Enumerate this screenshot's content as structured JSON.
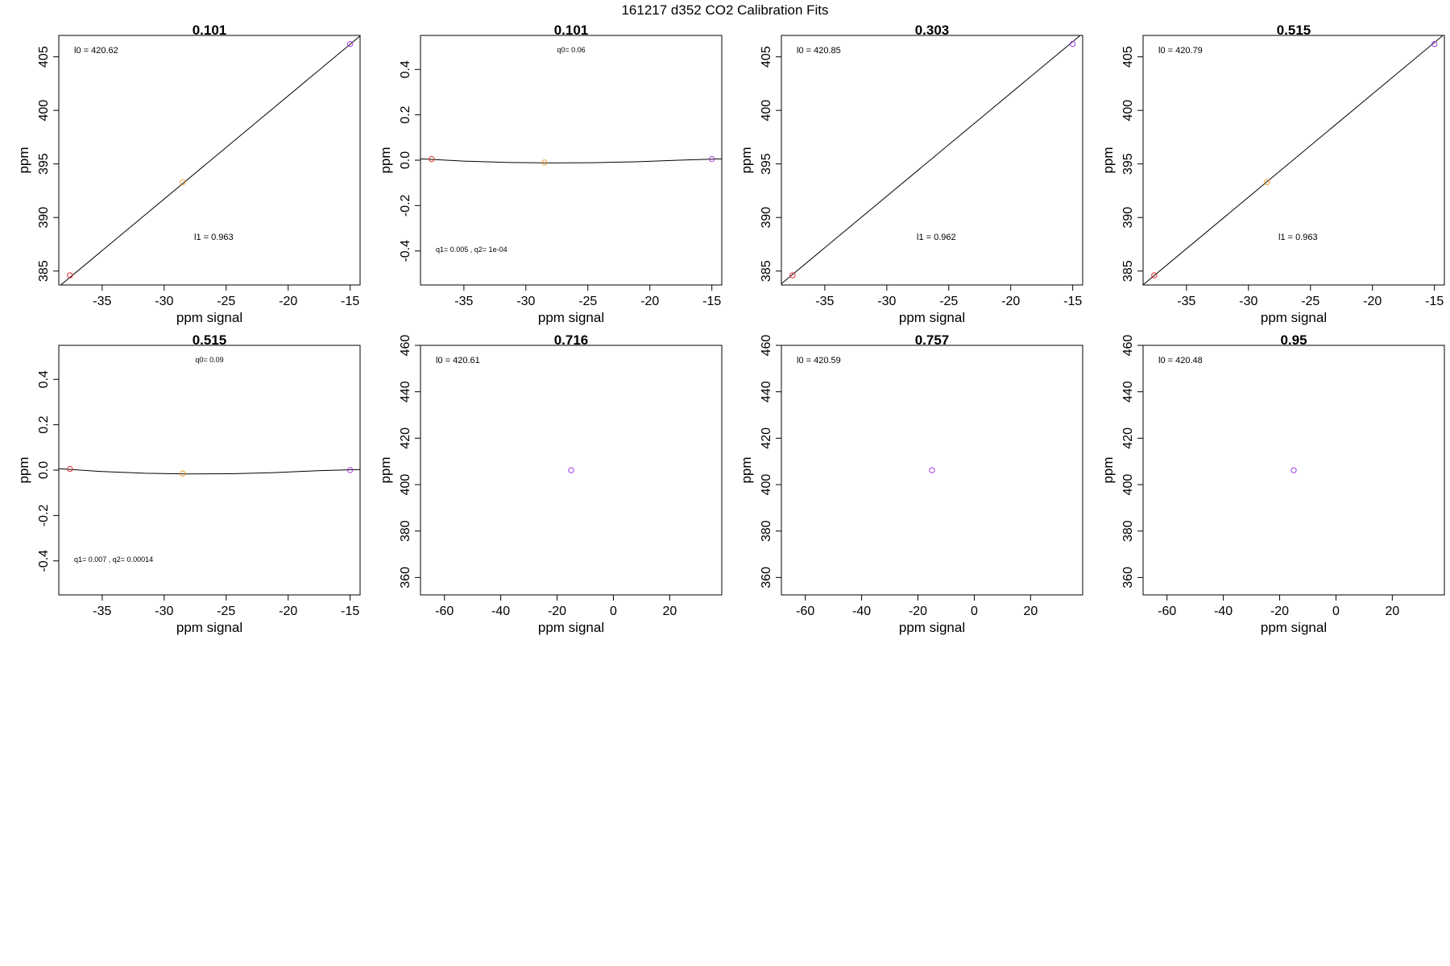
{
  "figure_title": "161217   d352   CO2 Calibration Fits",
  "colors": {
    "frame": "#000000",
    "fit_line": "#000000",
    "point_low": "#e03030",
    "point_mid": "#f0a030",
    "point_high": "#a040e0"
  },
  "chart_data": [
    {
      "type": "scatter",
      "title": "0.101",
      "xlabel": "ppm signal",
      "ylabel": "ppm",
      "xlim": [
        -38.5,
        -14.2
      ],
      "ylim": [
        383.7,
        407.0
      ],
      "xticks": [
        -35,
        -30,
        -25,
        -20,
        -15
      ],
      "xtick_labels": [
        "-35",
        "-30",
        "-25",
        "-20",
        "-15"
      ],
      "yticks": [
        385,
        390,
        395,
        400,
        405
      ],
      "ytick_labels": [
        "385",
        "390",
        "395",
        "400",
        "405"
      ],
      "points": [
        {
          "x": -37.6,
          "y": 384.6,
          "color": "#e03030"
        },
        {
          "x": -28.5,
          "y": 393.3,
          "color": "#f0a030"
        },
        {
          "x": -15.0,
          "y": 406.2,
          "color": "#a040e0"
        }
      ],
      "fit": {
        "kind": "linear",
        "intercept": 420.62,
        "slope": 0.963
      },
      "annotations": [
        {
          "text": "l0 =  420.62",
          "pos": "top-left"
        },
        {
          "text": "l1 =  0.963",
          "pos": "mid-right"
        }
      ]
    },
    {
      "type": "scatter",
      "title": "0.101",
      "xlabel": "ppm signal",
      "ylabel": "ppm",
      "xlim": [
        -38.5,
        -14.2
      ],
      "ylim": [
        -0.55,
        0.55
      ],
      "xticks": [
        -35,
        -30,
        -25,
        -20,
        -15
      ],
      "xtick_labels": [
        "-35",
        "-30",
        "-25",
        "-20",
        "-15"
      ],
      "yticks": [
        -0.4,
        -0.2,
        0.0,
        0.2,
        0.4
      ],
      "ytick_labels": [
        "-0.4",
        "-0.2",
        "0.0",
        "0.2",
        "0.4"
      ],
      "points": [
        {
          "x": -37.6,
          "y": 0.005,
          "color": "#e03030"
        },
        {
          "x": -28.5,
          "y": -0.01,
          "color": "#f0a030"
        },
        {
          "x": -15.0,
          "y": 0.005,
          "color": "#a040e0"
        }
      ],
      "fit": {
        "kind": "curve",
        "y": [
          0.006,
          -0.004,
          -0.01,
          -0.012,
          -0.011,
          -0.007,
          0.0,
          0.006
        ]
      },
      "annotations": [
        {
          "text": "q0= 0.06",
          "pos": "top-center"
        },
        {
          "text": "q1= 0.005 , q2= 1e-04",
          "pos": "bottom-left"
        }
      ]
    },
    {
      "type": "scatter",
      "title": "0.303",
      "xlabel": "ppm signal",
      "ylabel": "ppm",
      "xlim": [
        -38.5,
        -14.2
      ],
      "ylim": [
        383.7,
        407.0
      ],
      "xticks": [
        -35,
        -30,
        -25,
        -20,
        -15
      ],
      "xtick_labels": [
        "-35",
        "-30",
        "-25",
        "-20",
        "-15"
      ],
      "yticks": [
        385,
        390,
        395,
        400,
        405
      ],
      "ytick_labels": [
        "385",
        "390",
        "395",
        "400",
        "405"
      ],
      "points": [
        {
          "x": -37.6,
          "y": 384.6,
          "color": "#e03030"
        },
        {
          "x": -15.0,
          "y": 406.2,
          "color": "#a040e0"
        }
      ],
      "fit": {
        "kind": "linear",
        "intercept": 420.85,
        "slope": 0.962
      },
      "annotations": [
        {
          "text": "l0 =  420.85",
          "pos": "top-left"
        },
        {
          "text": "l1 =  0.962",
          "pos": "mid-right"
        }
      ]
    },
    {
      "type": "scatter",
      "title": "0.515",
      "xlabel": "ppm signal",
      "ylabel": "ppm",
      "xlim": [
        -38.5,
        -14.2
      ],
      "ylim": [
        383.7,
        407.0
      ],
      "xticks": [
        -35,
        -30,
        -25,
        -20,
        -15
      ],
      "xtick_labels": [
        "-35",
        "-30",
        "-25",
        "-20",
        "-15"
      ],
      "yticks": [
        385,
        390,
        395,
        400,
        405
      ],
      "ytick_labels": [
        "385",
        "390",
        "395",
        "400",
        "405"
      ],
      "points": [
        {
          "x": -37.6,
          "y": 384.6,
          "color": "#e03030"
        },
        {
          "x": -28.5,
          "y": 393.3,
          "color": "#f0a030"
        },
        {
          "x": -15.0,
          "y": 406.2,
          "color": "#a040e0"
        }
      ],
      "fit": {
        "kind": "linear",
        "intercept": 420.79,
        "slope": 0.963
      },
      "annotations": [
        {
          "text": "l0 =  420.79",
          "pos": "top-left"
        },
        {
          "text": "l1 =  0.963",
          "pos": "mid-right"
        }
      ]
    },
    {
      "type": "scatter",
      "title": "0.515",
      "xlabel": "ppm signal",
      "ylabel": "ppm",
      "xlim": [
        -38.5,
        -14.2
      ],
      "ylim": [
        -0.55,
        0.55
      ],
      "xticks": [
        -35,
        -30,
        -25,
        -20,
        -15
      ],
      "xtick_labels": [
        "-35",
        "-30",
        "-25",
        "-20",
        "-15"
      ],
      "yticks": [
        -0.4,
        -0.2,
        0.0,
        0.2,
        0.4
      ],
      "ytick_labels": [
        "-0.4",
        "-0.2",
        "0.0",
        "0.2",
        "0.4"
      ],
      "points": [
        {
          "x": -37.6,
          "y": 0.005,
          "color": "#e03030"
        },
        {
          "x": -28.5,
          "y": -0.015,
          "color": "#f0a030"
        },
        {
          "x": -15.0,
          "y": 0.0,
          "color": "#a040e0"
        }
      ],
      "fit": {
        "kind": "curve",
        "y": [
          0.006,
          -0.006,
          -0.014,
          -0.017,
          -0.016,
          -0.011,
          -0.003,
          0.003
        ]
      },
      "annotations": [
        {
          "text": "q0= 0.09",
          "pos": "top-center"
        },
        {
          "text": "q1= 0.007 , q2= 0.00014",
          "pos": "bottom-left"
        }
      ]
    },
    {
      "type": "scatter",
      "title": "0.716",
      "xlabel": "ppm signal",
      "ylabel": "ppm",
      "xlim": [
        -68.5,
        38.5
      ],
      "ylim": [
        352.5,
        460.0
      ],
      "xticks": [
        -60,
        -40,
        -20,
        0,
        20
      ],
      "xtick_labels": [
        "-60",
        "-40",
        "-20",
        "0",
        "20"
      ],
      "yticks": [
        360,
        380,
        400,
        420,
        440,
        460
      ],
      "ytick_labels": [
        "360",
        "380",
        "400",
        "420",
        "440",
        "460"
      ],
      "points": [
        {
          "x": -15.0,
          "y": 406.2,
          "color": "#a040e0"
        }
      ],
      "fit": null,
      "annotations": [
        {
          "text": "l0 =  420.61",
          "pos": "top-left"
        }
      ]
    },
    {
      "type": "scatter",
      "title": "0.757",
      "xlabel": "ppm signal",
      "ylabel": "ppm",
      "xlim": [
        -68.5,
        38.5
      ],
      "ylim": [
        352.5,
        460.0
      ],
      "xticks": [
        -60,
        -40,
        -20,
        0,
        20
      ],
      "xtick_labels": [
        "-60",
        "-40",
        "-20",
        "0",
        "20"
      ],
      "yticks": [
        360,
        380,
        400,
        420,
        440,
        460
      ],
      "ytick_labels": [
        "360",
        "380",
        "400",
        "420",
        "440",
        "460"
      ],
      "points": [
        {
          "x": -15.0,
          "y": 406.2,
          "color": "#a040e0"
        }
      ],
      "fit": null,
      "annotations": [
        {
          "text": "l0 =  420.59",
          "pos": "top-left"
        }
      ]
    },
    {
      "type": "scatter",
      "title": "0.95",
      "xlabel": "ppm signal",
      "ylabel": "ppm",
      "xlim": [
        -68.5,
        38.5
      ],
      "ylim": [
        352.5,
        460.0
      ],
      "xticks": [
        -60,
        -40,
        -20,
        0,
        20
      ],
      "xtick_labels": [
        "-60",
        "-40",
        "-20",
        "0",
        "20"
      ],
      "yticks": [
        360,
        380,
        400,
        420,
        440,
        460
      ],
      "ytick_labels": [
        "360",
        "380",
        "400",
        "420",
        "440",
        "460"
      ],
      "points": [
        {
          "x": -15.0,
          "y": 406.2,
          "color": "#a040e0"
        }
      ],
      "fit": null,
      "annotations": [
        {
          "text": "l0 =  420.48",
          "pos": "top-left"
        }
      ]
    }
  ]
}
